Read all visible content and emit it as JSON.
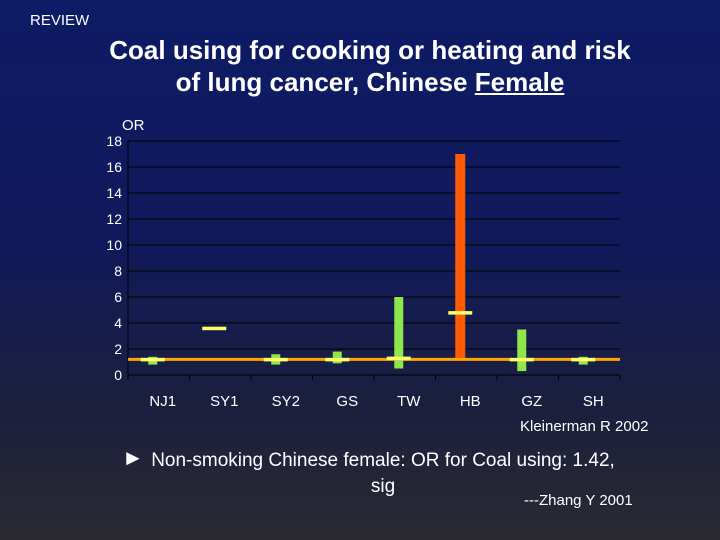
{
  "slide": {
    "tag": "REVIEW",
    "title_main": "Coal using for cooking or heating and risk of lung cancer, Chinese ",
    "title_underlined": "Female",
    "credit": "Kleinerman R 2002",
    "bullet_symbol": "►",
    "bullet_text": "Non-smoking Chinese female: OR for Coal using: 1.42, sig",
    "reference": "---Zhang Y 2001"
  },
  "colors": {
    "gridline": "#000000",
    "axis": "#000000",
    "reference_line": "#ffa500",
    "bar_green": "#8ee64a",
    "bar_orange": "#ff5a00",
    "marker_yellow": "#ffff66",
    "text": "#ffffff"
  },
  "chart_data": {
    "type": "bar",
    "ylabel": "OR",
    "ylim": [
      0,
      18
    ],
    "yticks": [
      0,
      2,
      4,
      6,
      8,
      10,
      12,
      14,
      16,
      18
    ],
    "grid": true,
    "reference_value": 1.2,
    "categories": [
      "NJ1",
      "SY1",
      "SY2",
      "GS",
      "TW",
      "HB",
      "GZ",
      "SH"
    ],
    "series": [
      {
        "values": [
          1.2,
          3.6,
          1.2,
          1.2,
          1.3,
          4.8,
          1.2,
          1.2
        ],
        "ci_low": [
          0.8,
          3.6,
          0.8,
          0.9,
          0.5,
          1.3,
          0.3,
          0.8
        ],
        "ci_high": [
          1.4,
          3.6,
          1.6,
          1.8,
          6.0,
          17.0,
          3.5,
          1.4
        ],
        "bar_colors": [
          "green",
          "none",
          "green",
          "green",
          "green",
          "orange",
          "green",
          "green"
        ]
      }
    ]
  }
}
